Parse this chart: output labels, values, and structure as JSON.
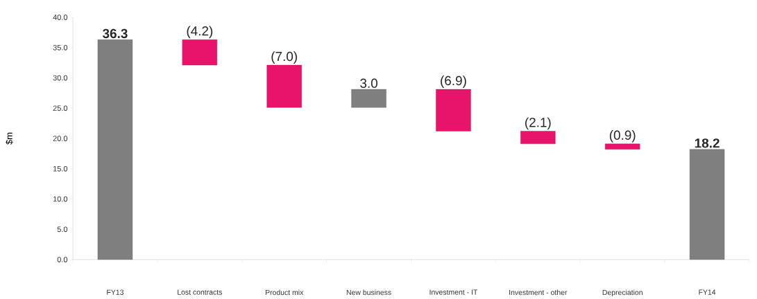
{
  "chart_data": {
    "type": "bar",
    "ylabel": "$m",
    "categories": [
      "FY13",
      "Lost contracts",
      "Product mix",
      "New business",
      "Investment - IT",
      "Investment - other",
      "Depreciation",
      "FY14"
    ],
    "values": [
      36.3,
      -4.2,
      -7.0,
      3.0,
      -6.9,
      -2.1,
      -0.9,
      18.2
    ],
    "base": [
      0,
      36.3,
      32.1,
      25.1,
      28.1,
      21.2,
      19.1,
      0
    ],
    "colors": [
      "#7f7f7f",
      "#e8146a",
      "#e8146a",
      "#7f7f7f",
      "#e8146a",
      "#e8146a",
      "#e8146a",
      "#7f7f7f"
    ],
    "value_labels": [
      "36.3",
      "(4.2)",
      "(7.0)",
      "3.0",
      "(6.9)",
      "(2.1)",
      "(0.9)",
      "18.2"
    ],
    "ylim": [
      0,
      40
    ],
    "yticks": [
      {
        "value": 0,
        "label": "0.0"
      },
      {
        "value": 5,
        "label": "5.0"
      },
      {
        "value": 10,
        "label": "10.0"
      },
      {
        "value": 15,
        "label": "15.0"
      },
      {
        "value": 20,
        "label": "20.0"
      },
      {
        "value": 25,
        "label": "25.0"
      },
      {
        "value": 30,
        "label": "30.0"
      },
      {
        "value": 35,
        "label": "35.0"
      },
      {
        "value": 40,
        "label": "40.0"
      }
    ]
  }
}
